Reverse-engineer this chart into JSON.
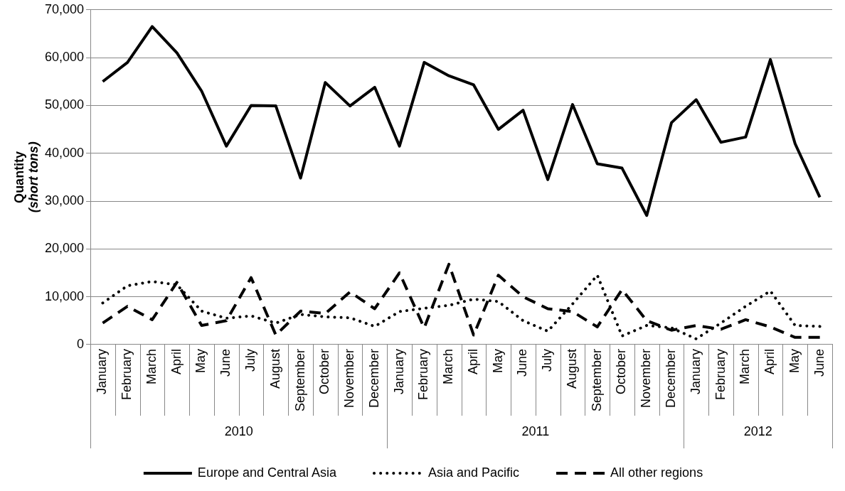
{
  "chart_data": {
    "type": "line",
    "ylabel": "Quantity\n(short tons)",
    "categories": [
      "January",
      "February",
      "March",
      "April",
      "May",
      "June",
      "July",
      "August",
      "September",
      "October",
      "November",
      "December",
      "January",
      "February",
      "March",
      "April",
      "May",
      "June",
      "July",
      "August",
      "September",
      "October",
      "November",
      "December",
      "January",
      "February",
      "March",
      "April",
      "May",
      "June"
    ],
    "series": [
      {
        "name": "Europe and Central Asia",
        "color": "#000000",
        "line_style": "solid",
        "values": [
          55000,
          59000,
          66500,
          61000,
          53000,
          41500,
          50000,
          49900,
          34800,
          54800,
          49900,
          53800,
          41500,
          59000,
          56200,
          54300,
          45000,
          49000,
          34500,
          50200,
          37800,
          36900,
          27000,
          46400,
          51200,
          42300,
          43400,
          59600,
          42000,
          30800
        ]
      },
      {
        "name": "Asia and Pacific",
        "color": "#000000",
        "line_style": "dotted",
        "values": [
          8700,
          12300,
          13200,
          12500,
          7000,
          5500,
          6000,
          4500,
          6300,
          5800,
          5600,
          3800,
          6900,
          7600,
          8200,
          9500,
          9000,
          5000,
          2800,
          8500,
          14500,
          1800,
          4000,
          3500,
          1200,
          4500,
          8000,
          11200,
          4000,
          3800
        ]
      },
      {
        "name": "All other regions",
        "color": "#000000",
        "line_style": "dashed",
        "values": [
          4500,
          8000,
          5200,
          13000,
          4000,
          5000,
          14000,
          2000,
          7000,
          6500,
          11000,
          7500,
          15000,
          3500,
          16800,
          2000,
          14500,
          10000,
          7500,
          6900,
          3700,
          11500,
          5000,
          3000,
          4000,
          3200,
          5200,
          3700,
          1500,
          1500
        ]
      }
    ],
    "annotations": [
      "2010",
      "2011",
      "2012"
    ],
    "ylim": [
      0,
      70000
    ],
    "yticks": [
      0,
      {
        "value": 10000,
        "label": "10,000"
      },
      {
        "value": 20000,
        "label": "20,000"
      },
      {
        "value": 30000,
        "label": "30,000"
      },
      {
        "value": 40000,
        "label": "40,000"
      },
      {
        "value": 50000,
        "label": "50,000"
      },
      {
        "value": 60000,
        "label": "60,000"
      },
      {
        "value": 70000,
        "label": "70,000"
      }
    ],
    "grid": "y",
    "legend": "bottom",
    "marker": "none"
  }
}
